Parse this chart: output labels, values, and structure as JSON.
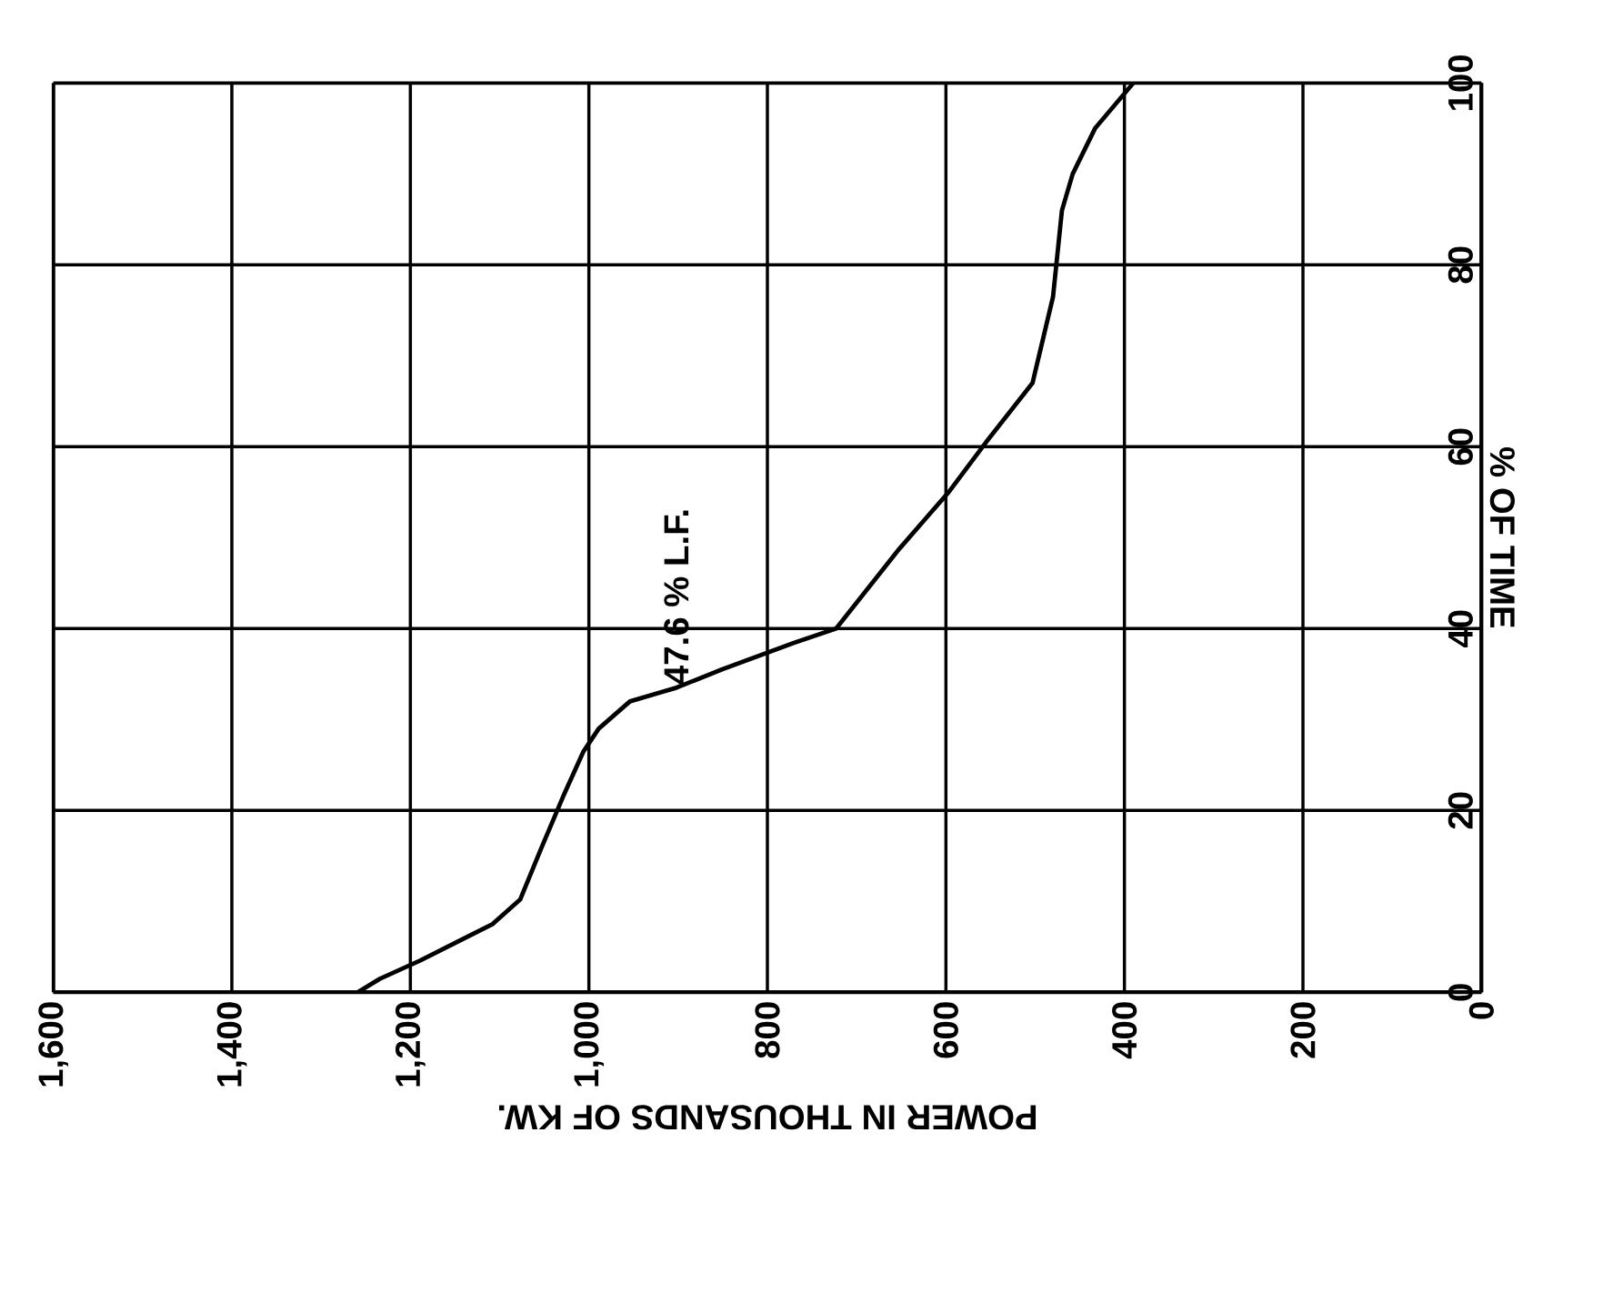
{
  "chart_data": {
    "type": "line",
    "xlabel": "POWER IN THOUSANDS OF KW.",
    "ylabel": "% OF TIME",
    "x": [
      1259,
      1234,
      1189,
      1108,
      1077,
      1054,
      1029,
      1006,
      989,
      954,
      902,
      851,
      771,
      723,
      652,
      597,
      555,
      503,
      480,
      470,
      458,
      433,
      390
    ],
    "series": [
      {
        "color": "#000000",
        "values": [
          0,
          1.5,
          3.5,
          7.5,
          10.2,
          15.7,
          21.5,
          26.5,
          29,
          32,
          33.5,
          35.5,
          38.4,
          40,
          48.8,
          55,
          60.5,
          67,
          76.5,
          86,
          90,
          95,
          100
        ]
      }
    ],
    "xlim": [
      1600,
      0
    ],
    "ylim": [
      0,
      100
    ],
    "xticks": [
      {
        "value": 1600,
        "label": "1,600"
      },
      {
        "value": 1400,
        "label": "1,400"
      },
      {
        "value": 1200,
        "label": "1,200"
      },
      {
        "value": 1000,
        "label": "1,000"
      },
      800,
      600,
      400,
      200,
      0
    ],
    "yticks": [
      0,
      20,
      40,
      60,
      80,
      100
    ],
    "annotations": [
      {
        "text": "47.6 % L.F.",
        "x": 902,
        "y": 33.5
      }
    ],
    "grid": true
  }
}
